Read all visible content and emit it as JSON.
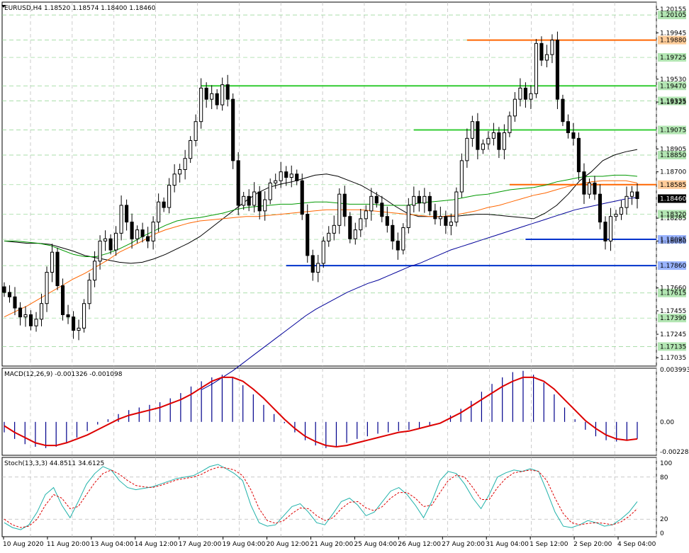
{
  "header": {
    "symbol": "EURUSD,H4",
    "ohlc": "1.18520 1.18574 1.18400 1.18460"
  },
  "chart_data": [
    {
      "type": "candlestick",
      "title": "EURUSD,H4",
      "ylim": [
        1.1696,
        1.2022
      ],
      "y_ticks": [
        "1.20155",
        "1.19945",
        "1.19530",
        "1.19325",
        "1.18905",
        "1.18700",
        "1.18285",
        "1.18080",
        "1.17660",
        "1.17455",
        "1.17245",
        "1.17035"
      ],
      "highlight_levels": [
        {
          "value": 1.20105,
          "label": "1.20105",
          "line": false,
          "color": "#33cc33"
        },
        {
          "value": 1.1988,
          "label": "1.19880",
          "line": true,
          "color": "#ff6600",
          "from_index": 87
        },
        {
          "value": 1.19725,
          "label": "1.19725",
          "line": false,
          "color": "#33cc33"
        },
        {
          "value": 1.1947,
          "label": "1.19470",
          "line": true,
          "color": "#33cc33",
          "from_index": 37
        },
        {
          "value": 1.19335,
          "label": "1.19335",
          "line": false,
          "color": "#33cc33"
        },
        {
          "value": 1.19075,
          "label": "1.19075",
          "line": true,
          "color": "#33cc33",
          "from_index": 77
        },
        {
          "value": 1.1885,
          "label": "1.18850",
          "line": false,
          "color": "#33cc33"
        },
        {
          "value": 1.18585,
          "label": "1.18585",
          "line": true,
          "color": "#ff6600",
          "from_index": 95
        },
        {
          "value": 1.1832,
          "label": "1.18320",
          "line": false,
          "color": "#33cc33"
        },
        {
          "value": 1.18095,
          "label": "1.18095",
          "line": true,
          "color": "#0033cc",
          "from_index": 98
        },
        {
          "value": 1.1786,
          "label": "1.17860",
          "line": true,
          "color": "#0033cc",
          "from_index": 53
        },
        {
          "value": 1.17615,
          "label": "1.17615",
          "line": false,
          "color": "#33cc33"
        },
        {
          "value": 1.1739,
          "label": "1.17390",
          "line": false,
          "color": "#33cc33"
        },
        {
          "value": 1.17135,
          "label": "1.17135",
          "line": false,
          "color": "#33cc33"
        }
      ],
      "current_price": {
        "value": 1.1846,
        "label": "1.18460"
      },
      "x_labels": [
        "10 Aug 2020",
        "11 Aug 20:00",
        "13 Aug 04:00",
        "14 Aug 12:00",
        "17 Aug 20:00",
        "19 Aug 04:00",
        "20 Aug 12:00",
        "21 Aug 20:00",
        "25 Aug 04:00",
        "26 Aug 12:00",
        "27 Aug 20:00",
        "31 Aug 04:00",
        "1 Sep 12:00",
        "2 Sep 20:00",
        "4 Sep 04:00"
      ],
      "closes": [
        1.1762,
        1.1758,
        1.1748,
        1.174,
        1.1742,
        1.1732,
        1.1738,
        1.1752,
        1.178,
        1.1798,
        1.1768,
        1.1742,
        1.174,
        1.1728,
        1.173,
        1.1752,
        1.1773,
        1.179,
        1.1808,
        1.181,
        1.18,
        1.1815,
        1.184,
        1.1825,
        1.181,
        1.1818,
        1.1812,
        1.1808,
        1.1825,
        1.1843,
        1.1838,
        1.1858,
        1.1868,
        1.1872,
        1.1882,
        1.1898,
        1.1915,
        1.1945,
        1.1935,
        1.194,
        1.193,
        1.1948,
        1.1935,
        1.188,
        1.184,
        1.1848,
        1.184,
        1.1852,
        1.1835,
        1.1845,
        1.186,
        1.1862,
        1.187,
        1.1865,
        1.1868,
        1.1862,
        1.1832,
        1.1795,
        1.178,
        1.1788,
        1.1808,
        1.1815,
        1.1822,
        1.185,
        1.183,
        1.181,
        1.1818,
        1.1828,
        1.1835,
        1.1848,
        1.1842,
        1.183,
        1.1822,
        1.1808,
        1.18,
        1.182,
        1.184,
        1.1848,
        1.1842,
        1.1848,
        1.1835,
        1.1828,
        1.183,
        1.1822,
        1.1825,
        1.1852,
        1.188,
        1.19,
        1.1915,
        1.189,
        1.1895,
        1.19,
        1.1905,
        1.189,
        1.1905,
        1.192,
        1.1935,
        1.1945,
        1.1935,
        1.194,
        1.1985,
        1.197,
        1.1975,
        1.1988,
        1.1935,
        1.1915,
        1.1905,
        1.19,
        1.187,
        1.185,
        1.186,
        1.185,
        1.1825,
        1.1808,
        1.183,
        1.1832,
        1.1838,
        1.1848,
        1.1852,
        1.1846
      ],
      "ma_series": [
        {
          "color": "#000000",
          "y": [
            1.1808,
            1.1807,
            1.1806,
            1.1806,
            1.1805,
            1.1802,
            1.1799,
            1.1795,
            1.1793,
            1.1791,
            1.1789,
            1.1788,
            1.1789,
            1.1792,
            1.1796,
            1.1801,
            1.1806,
            1.1812,
            1.182,
            1.1828,
            1.1836,
            1.1844,
            1.1851,
            1.1856,
            1.1859,
            1.1861,
            1.1864,
            1.1867,
            1.1868,
            1.1866,
            1.1862,
            1.1858,
            1.1852,
            1.1846,
            1.1839,
            1.1833,
            1.183,
            1.183,
            1.183,
            1.183,
            1.1831,
            1.1832,
            1.1832,
            1.1831,
            1.183,
            1.1829,
            1.1828,
            1.1833,
            1.184,
            1.185,
            1.1862,
            1.187,
            1.188,
            1.1885,
            1.1888,
            1.189
          ]
        },
        {
          "color": "#009900",
          "y": [
            1.1808,
            1.1808,
            1.1807,
            1.1806,
            1.1804,
            1.18,
            1.1796,
            1.1794,
            1.1794,
            1.1797,
            1.1801,
            1.1806,
            1.1812,
            1.1817,
            1.1822,
            1.1826,
            1.1828,
            1.1829,
            1.1831,
            1.1833,
            1.1836,
            1.1838,
            1.1839,
            1.184,
            1.1841,
            1.1841,
            1.1842,
            1.1843,
            1.1843,
            1.1842,
            1.1841,
            1.1841,
            1.1841,
            1.184,
            1.184,
            1.184,
            1.1842,
            1.1843,
            1.1844,
            1.1845,
            1.1847,
            1.1849,
            1.185,
            1.1852,
            1.1854,
            1.1855,
            1.1856,
            1.1858,
            1.1861,
            1.1863,
            1.1865,
            1.1866,
            1.1866,
            1.1867,
            1.1867,
            1.1866
          ]
        },
        {
          "color": "#ff6600",
          "y": [
            1.174,
            1.1745,
            1.175,
            1.1756,
            1.1762,
            1.1768,
            1.1774,
            1.1779,
            1.1785,
            1.1791,
            1.1798,
            1.1803,
            1.1808,
            1.1814,
            1.1818,
            1.1821,
            1.1824,
            1.1826,
            1.1827,
            1.1828,
            1.1829,
            1.183,
            1.183,
            1.1831,
            1.1832,
            1.1833,
            1.1834,
            1.1835,
            1.1836,
            1.1836,
            1.1836,
            1.1836,
            1.1835,
            1.1834,
            1.1833,
            1.1832,
            1.1831,
            1.183,
            1.183,
            1.1831,
            1.1833,
            1.1835,
            1.1838,
            1.184,
            1.1843,
            1.1846,
            1.1849,
            1.1851,
            1.1854,
            1.1857,
            1.1859,
            1.1861,
            1.1862,
            1.1862,
            1.1862,
            1.186
          ]
        },
        {
          "color": "#000099",
          "y": [
            1.1675,
            1.168,
            1.1686,
            1.1692,
            1.1699,
            1.1706,
            1.1713,
            1.172,
            1.1727,
            1.1734,
            1.1741,
            1.1747,
            1.1752,
            1.1757,
            1.1762,
            1.1766,
            1.177,
            1.1773,
            1.1777,
            1.1781,
            1.1785,
            1.1788,
            1.1792,
            1.1796,
            1.18,
            1.1803,
            1.1806,
            1.1809,
            1.1812,
            1.1815,
            1.1818,
            1.1821,
            1.1824,
            1.1827,
            1.183,
            1.1833,
            1.1836,
            1.1838,
            1.184,
            1.1842,
            1.1844,
            1.1846,
            1.1847
          ]
        }
      ]
    },
    {
      "type": "histogram_line",
      "title": "MACD(12,26,9) -0.001326 -0.001098",
      "ylim": [
        -0.00255,
        0.0041
      ],
      "y_ticks": [
        "0.003993",
        "0.00",
        "-0.002286"
      ],
      "histogram": [
        -0.0008,
        -0.0013,
        -0.0017,
        -0.0019,
        -0.002,
        -0.0019,
        -0.0016,
        -0.0012,
        -0.0007,
        -0.0002,
        0.0002,
        0.0006,
        0.0009,
        0.0011,
        0.0013,
        0.0015,
        0.0018,
        0.0022,
        0.0027,
        0.0031,
        0.0034,
        0.0036,
        0.0034,
        0.0028,
        0.0021,
        0.0013,
        0.0006,
        -0.0001,
        -0.0008,
        -0.0014,
        -0.0018,
        -0.002,
        -0.0019,
        -0.0016,
        -0.0013,
        -0.0011,
        -0.0009,
        -0.0008,
        -0.0007,
        -0.0006,
        -0.0005,
        -0.0003,
        0.0,
        0.0005,
        0.001,
        0.0016,
        0.0023,
        0.0029,
        0.0034,
        0.0038,
        0.0039,
        0.0036,
        0.003,
        0.0021,
        0.0011,
        0.0002,
        -0.0006,
        -0.0011,
        -0.0014,
        -0.0015,
        -0.0014,
        -0.0013
      ],
      "signal": [
        -0.0003,
        -0.0008,
        -0.0012,
        -0.0016,
        -0.0018,
        -0.0018,
        -0.0016,
        -0.0013,
        -0.001,
        -0.0006,
        -0.0002,
        0.0002,
        0.0005,
        0.0007,
        0.0009,
        0.0011,
        0.0014,
        0.0017,
        0.0021,
        0.0026,
        0.0031,
        0.0034,
        0.0034,
        0.0031,
        0.0025,
        0.0018,
        0.001,
        0.0002,
        -0.0005,
        -0.0011,
        -0.0015,
        -0.0018,
        -0.0019,
        -0.0018,
        -0.0016,
        -0.0014,
        -0.0012,
        -0.001,
        -0.0008,
        -0.0007,
        -0.0005,
        -0.0003,
        -0.0001,
        0.0003,
        0.0007,
        0.0012,
        0.0017,
        0.0022,
        0.0027,
        0.0031,
        0.0034,
        0.0034,
        0.0031,
        0.0025,
        0.0017,
        0.0009,
        0.0001,
        -0.0005,
        -0.001,
        -0.0013,
        -0.0014,
        -0.0013
      ]
    },
    {
      "type": "line",
      "title": "Stoch(13,3,3) 44.8511 34.6125",
      "ylim": [
        -5,
        108
      ],
      "y_ticks": [
        "100",
        "80",
        "20",
        "0"
      ],
      "main": [
        15,
        8,
        5,
        12,
        30,
        55,
        65,
        40,
        22,
        45,
        70,
        85,
        95,
        90,
        75,
        65,
        62,
        64,
        66,
        70,
        74,
        78,
        80,
        82,
        88,
        95,
        98,
        92,
        85,
        75,
        40,
        15,
        10,
        12,
        25,
        38,
        42,
        30,
        15,
        12,
        28,
        45,
        50,
        40,
        25,
        30,
        45,
        60,
        65,
        55,
        40,
        22,
        45,
        75,
        88,
        85,
        70,
        50,
        35,
        55,
        80,
        86,
        90,
        88,
        92,
        88,
        60,
        30,
        10,
        8,
        12,
        18,
        15,
        10,
        12,
        20,
        30,
        45
      ],
      "signal": [
        20,
        12,
        8,
        10,
        20,
        40,
        55,
        50,
        35,
        38,
        55,
        72,
        85,
        90,
        84,
        75,
        68,
        66,
        65,
        68,
        72,
        76,
        78,
        80,
        84,
        90,
        94,
        93,
        90,
        82,
        62,
        35,
        18,
        14,
        18,
        28,
        36,
        35,
        25,
        18,
        22,
        35,
        44,
        45,
        36,
        32,
        38,
        50,
        58,
        58,
        50,
        38,
        40,
        58,
        75,
        83,
        80,
        65,
        48,
        48,
        65,
        78,
        86,
        88,
        90,
        88,
        75,
        50,
        28,
        15,
        12,
        14,
        15,
        14,
        12,
        16,
        24,
        35
      ],
      "levels": [
        20,
        80
      ]
    }
  ]
}
